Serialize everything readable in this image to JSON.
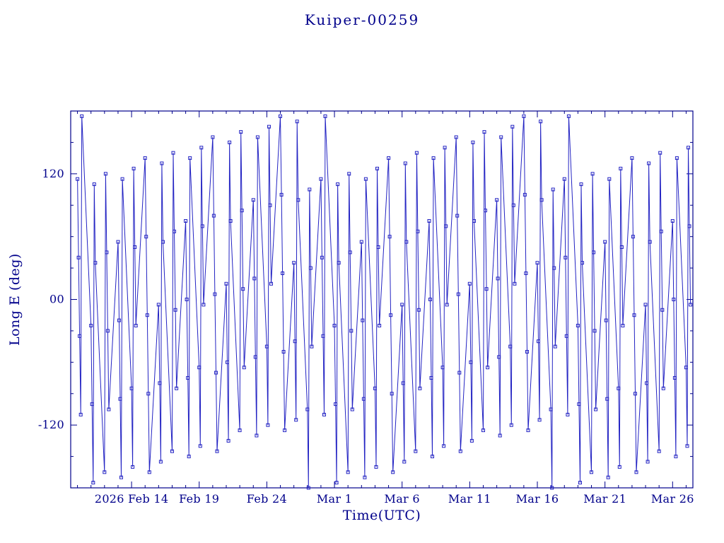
{
  "window": {
    "background": "#ffffff"
  },
  "colors": {
    "frame": "#00008b",
    "text": "#00008b",
    "data_line": "#2323c3"
  },
  "chart_data": {
    "type": "line",
    "title": "Kuiper-00259",
    "xlabel": "Time(UTC)",
    "ylabel": "Long E (deg)",
    "grid": false,
    "legend": "none",
    "marker": "open-square",
    "x_axis": {
      "tick_labels": [
        "2026 Feb 14",
        "Feb 19",
        "Feb 24",
        "Mar 1",
        "Mar 6",
        "Mar 11",
        "Mar 16",
        "Mar 21",
        "Mar 26"
      ],
      "tick_days": [
        0,
        5,
        10,
        15,
        20,
        25,
        30,
        35,
        40
      ],
      "range_days": [
        -4.5,
        41.5
      ],
      "minor_step_days": 1
    },
    "y_axis": {
      "range": [
        -180,
        180
      ],
      "tick_values": [
        120,
        0,
        -120
      ],
      "tick_labels": [
        "120",
        "00",
        "-120"
      ],
      "minor_step": 30
    },
    "sample_offsets_days": [
      0,
      0.08,
      0.16,
      0.24,
      0.32
    ],
    "nights": [
      {
        "t0": -4,
        "lon": [
          115,
          40,
          -35,
          -110,
          175
        ]
      },
      {
        "t0": -3,
        "lon": [
          -25,
          -100,
          -175,
          110,
          35
        ]
      },
      {
        "t0": -2,
        "lon": [
          -165,
          120,
          45,
          -30,
          -105
        ]
      },
      {
        "t0": -1,
        "lon": [
          55,
          -20,
          -95,
          -170,
          115
        ]
      },
      {
        "t0": 0,
        "lon": [
          -85,
          -160,
          125,
          50,
          -25
        ]
      },
      {
        "t0": 1,
        "lon": [
          135,
          60,
          -15,
          -90,
          -165
        ]
      },
      {
        "t0": 2,
        "lon": [
          -5,
          -80,
          -155,
          130,
          55
        ]
      },
      {
        "t0": 3,
        "lon": [
          -145,
          140,
          65,
          -10,
          -85
        ]
      },
      {
        "t0": 4,
        "lon": [
          75,
          0,
          -75,
          -150,
          135
        ]
      },
      {
        "t0": 5,
        "lon": [
          -65,
          -140,
          145,
          70,
          -5
        ]
      },
      {
        "t0": 6,
        "lon": [
          155,
          80,
          5,
          -70,
          -145
        ]
      },
      {
        "t0": 7,
        "lon": [
          15,
          -60,
          -135,
          150,
          75
        ]
      },
      {
        "t0": 8,
        "lon": [
          -125,
          160,
          85,
          10,
          -65
        ]
      },
      {
        "t0": 9,
        "lon": [
          95,
          20,
          -55,
          -130,
          155
        ]
      },
      {
        "t0": 10,
        "lon": [
          -45,
          -120,
          165,
          90,
          15
        ]
      },
      {
        "t0": 11,
        "lon": [
          175,
          100,
          25,
          -50,
          -125
        ]
      },
      {
        "t0": 12,
        "lon": [
          35,
          -40,
          -115,
          170,
          95
        ]
      },
      {
        "t0": 13,
        "lon": [
          -105,
          -180,
          105,
          30,
          -45
        ]
      },
      {
        "t0": 14,
        "lon": [
          115,
          40,
          -35,
          -110,
          175
        ]
      },
      {
        "t0": 15,
        "lon": [
          -25,
          -100,
          -175,
          110,
          35
        ]
      },
      {
        "t0": 16,
        "lon": [
          -165,
          120,
          45,
          -30,
          -105
        ]
      },
      {
        "t0": 17,
        "lon": [
          55,
          -20,
          -95,
          -170,
          115
        ]
      },
      {
        "t0": 18,
        "lon": [
          -85,
          -160,
          125,
          50,
          -25
        ]
      },
      {
        "t0": 19,
        "lon": [
          135,
          60,
          -15,
          -90,
          -165
        ]
      },
      {
        "t0": 20,
        "lon": [
          -5,
          -80,
          -155,
          130,
          55
        ]
      },
      {
        "t0": 21,
        "lon": [
          -145,
          140,
          65,
          -10,
          -85
        ]
      },
      {
        "t0": 22,
        "lon": [
          75,
          0,
          -75,
          -150,
          135
        ]
      },
      {
        "t0": 23,
        "lon": [
          -65,
          -140,
          145,
          70,
          -5
        ]
      },
      {
        "t0": 24,
        "lon": [
          155,
          80,
          5,
          -70,
          -145
        ]
      },
      {
        "t0": 25,
        "lon": [
          15,
          -60,
          -135,
          150,
          75
        ]
      },
      {
        "t0": 26,
        "lon": [
          -125,
          160,
          85,
          10,
          -65
        ]
      },
      {
        "t0": 27,
        "lon": [
          95,
          20,
          -55,
          -130,
          155
        ]
      },
      {
        "t0": 28,
        "lon": [
          -45,
          -120,
          165,
          90,
          15
        ]
      },
      {
        "t0": 29,
        "lon": [
          175,
          100,
          25,
          -50,
          -125
        ]
      },
      {
        "t0": 30,
        "lon": [
          35,
          -40,
          -115,
          170,
          95
        ]
      },
      {
        "t0": 31,
        "lon": [
          -105,
          -180,
          105,
          30,
          -45
        ]
      },
      {
        "t0": 32,
        "lon": [
          115,
          40,
          -35,
          -110,
          175
        ]
      },
      {
        "t0": 33,
        "lon": [
          -25,
          -100,
          -175,
          110,
          35
        ]
      },
      {
        "t0": 34,
        "lon": [
          -165,
          120,
          45,
          -30,
          -105
        ]
      },
      {
        "t0": 35,
        "lon": [
          55,
          -20,
          -95,
          -170,
          115
        ]
      },
      {
        "t0": 36,
        "lon": [
          -85,
          -160,
          125,
          50,
          -25
        ]
      },
      {
        "t0": 37,
        "lon": [
          135,
          60,
          -15,
          -90,
          -165
        ]
      },
      {
        "t0": 38,
        "lon": [
          -5,
          -80,
          -155,
          130,
          55
        ]
      },
      {
        "t0": 39,
        "lon": [
          -145,
          140,
          65,
          -10,
          -85
        ]
      },
      {
        "t0": 40,
        "lon": [
          75,
          0,
          -75,
          -150,
          135
        ]
      },
      {
        "t0": 41,
        "lon": [
          -65,
          -140,
          145,
          70,
          -5
        ]
      }
    ]
  }
}
